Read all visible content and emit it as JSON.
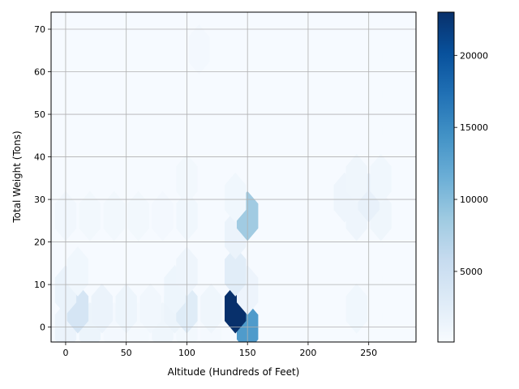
{
  "chart_data": {
    "type": "heatmap",
    "subtype": "hexbin",
    "title": "",
    "xlabel": "Altitude (Hundreds of Feet)",
    "ylabel": "Total Weight (Tons)",
    "xlim": [
      -12,
      289
    ],
    "ylim": [
      -3.5,
      74
    ],
    "xticks": [
      0,
      50,
      100,
      150,
      200,
      250
    ],
    "yticks": [
      0,
      10,
      20,
      30,
      40,
      50,
      60,
      70
    ],
    "grid": true,
    "colormap": "Blues",
    "colorbar": {
      "min": 100,
      "max": 23000,
      "ticks": [
        5000,
        10000,
        15000,
        20000
      ]
    },
    "hex_size": {
      "dx": 10,
      "dy": 8.7
    },
    "background_count": 200,
    "cells": [
      {
        "x": 0,
        "y": 0,
        "count": 1500
      },
      {
        "x": 20,
        "y": 0,
        "count": 1400
      },
      {
        "x": 40,
        "y": 0,
        "count": 600
      },
      {
        "x": 60,
        "y": 0,
        "count": 500
      },
      {
        "x": 80,
        "y": 0,
        "count": 1000
      },
      {
        "x": 100,
        "y": 0,
        "count": 700
      },
      {
        "x": 120,
        "y": 0,
        "count": 500
      },
      {
        "x": 150,
        "y": 0,
        "count": 13500
      },
      {
        "x": 10,
        "y": 4.35,
        "count": 4000
      },
      {
        "x": 30,
        "y": 4.35,
        "count": 1500
      },
      {
        "x": 50,
        "y": 4.35,
        "count": 1200
      },
      {
        "x": 70,
        "y": 4.35,
        "count": 800
      },
      {
        "x": 90,
        "y": 4.35,
        "count": 1400
      },
      {
        "x": 100,
        "y": 4.35,
        "count": 2800
      },
      {
        "x": 120,
        "y": 4.35,
        "count": 1000
      },
      {
        "x": 140,
        "y": 4.35,
        "count": 23000
      },
      {
        "x": 240,
        "y": 4.35,
        "count": 900
      },
      {
        "x": 0,
        "y": 8.7,
        "count": 1600
      },
      {
        "x": 90,
        "y": 8.7,
        "count": 1200
      },
      {
        "x": 150,
        "y": 8.7,
        "count": 1300
      },
      {
        "x": 10,
        "y": 13.05,
        "count": 900
      },
      {
        "x": 100,
        "y": 13.05,
        "count": 1100
      },
      {
        "x": 140,
        "y": 13.05,
        "count": 2600
      },
      {
        "x": 140,
        "y": 21.75,
        "count": 1500
      },
      {
        "x": 0,
        "y": 26.1,
        "count": 800
      },
      {
        "x": 20,
        "y": 26.1,
        "count": 700
      },
      {
        "x": 40,
        "y": 26.1,
        "count": 700
      },
      {
        "x": 60,
        "y": 26.1,
        "count": 700
      },
      {
        "x": 80,
        "y": 26.1,
        "count": 600
      },
      {
        "x": 100,
        "y": 26.1,
        "count": 900
      },
      {
        "x": 150,
        "y": 26.1,
        "count": 8500
      },
      {
        "x": 240,
        "y": 26.1,
        "count": 1100
      },
      {
        "x": 260,
        "y": 26.1,
        "count": 1000
      },
      {
        "x": 140,
        "y": 30.45,
        "count": 900
      },
      {
        "x": 230,
        "y": 30.45,
        "count": 1100
      },
      {
        "x": 250,
        "y": 30.45,
        "count": 1800
      },
      {
        "x": 100,
        "y": 34.8,
        "count": 700
      },
      {
        "x": 240,
        "y": 34.8,
        "count": 1000
      },
      {
        "x": 260,
        "y": 34.8,
        "count": 900
      },
      {
        "x": 110,
        "y": 65.25,
        "count": 600
      }
    ]
  }
}
